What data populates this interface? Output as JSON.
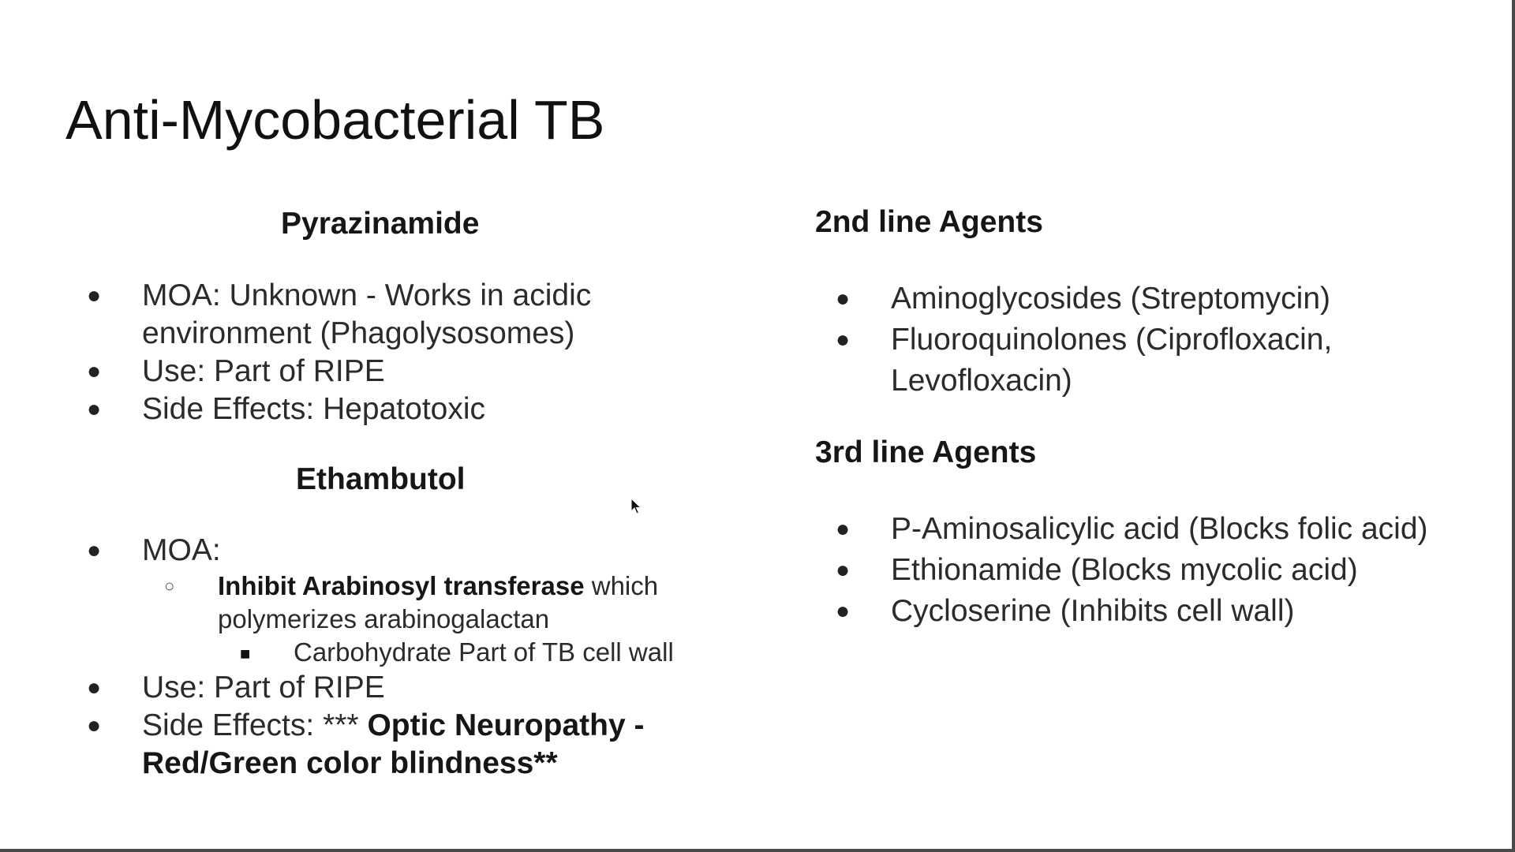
{
  "slide": {
    "title": "Anti-Mycobacterial TB",
    "left": {
      "pyrazinamide": {
        "heading": "Pyrazinamide",
        "moa_line1": "MOA: Unknown - Works in acidic",
        "moa_line2": "environment (Phagolysosomes)",
        "use": "Use: Part of RIPE",
        "side_effects": "Side Effects: Hepatotoxic"
      },
      "ethambutol": {
        "heading": "Ethambutol",
        "moa": "MOA:",
        "sub_bold": "Inhibit Arabinosyl transferase",
        "sub_rest1": " which",
        "sub_line2": "polymerizes arabinogalactan",
        "subsub": "Carbohydrate Part of TB cell wall",
        "use": "Use: Part of RIPE",
        "side_prefix": "Side Effects: *** ",
        "side_bold1": "Optic Neuropathy -",
        "side_bold2": "Red/Green color blindness**"
      }
    },
    "right": {
      "second_line": {
        "heading": "2nd line Agents",
        "items": [
          "Aminoglycosides (Streptomycin)",
          "Fluoroquinolones (Ciprofloxacin,",
          "Levofloxacin)"
        ]
      },
      "third_line": {
        "heading": "3rd line Agents",
        "items": [
          "P-Aminosalicylic acid (Blocks folic acid)",
          "Ethionamide (Blocks mycolic acid)",
          "Cycloserine (Inhibits cell wall)"
        ]
      }
    },
    "glyphs": {
      "bullet": "●",
      "ring": "○",
      "square": "■"
    }
  }
}
